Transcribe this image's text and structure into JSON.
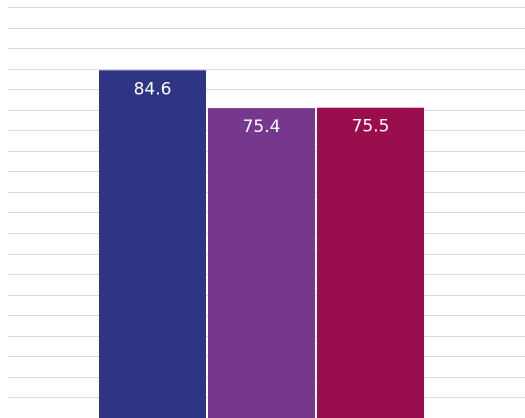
{
  "chart_data": {
    "type": "bar",
    "title": "",
    "xlabel": "",
    "ylabel": "",
    "categories": [
      "",
      "",
      ""
    ],
    "values": [
      84.6,
      75.4,
      75.5
    ],
    "data_labels": [
      "84.6",
      "75.4",
      "75.5"
    ],
    "colors": [
      "#2e3584",
      "#76388c",
      "#9a0e4e"
    ],
    "ylim": [
      0,
      150
    ],
    "grid": true,
    "grid_step": 5,
    "legend": "none"
  }
}
